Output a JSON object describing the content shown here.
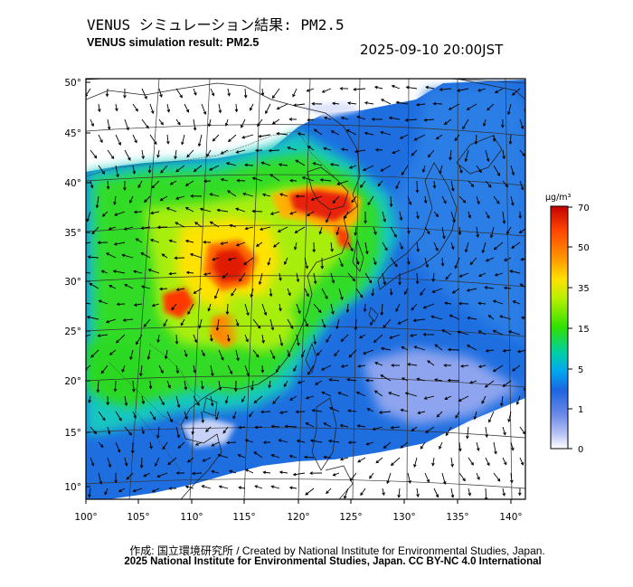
{
  "header": {
    "title_jp": "VENUS シミュレーション結果: PM2.5",
    "title_en": "VENUS simulation result: PM2.5",
    "datetime": "2025-09-10 20:00JST"
  },
  "map": {
    "lat_labels": [
      "50°",
      "45°",
      "40°",
      "35°",
      "30°",
      "25°",
      "20°",
      "15°",
      "10°"
    ],
    "lon_labels": [
      "100°",
      "105°",
      "110°",
      "115°",
      "120°",
      "125°",
      "130°",
      "135°",
      "140°"
    ]
  },
  "colorbar": {
    "unit": "μg/m³",
    "tick_labels": [
      "70",
      "50",
      "35",
      "15",
      "5",
      "1",
      "0"
    ],
    "colors": [
      "#c40000",
      "#ff4500",
      "#ff9a00",
      "#ffe000",
      "#b8f000",
      "#30e000",
      "#00d0a0",
      "#00a8f0",
      "#1e64e0",
      "#6a8ae8",
      "#b8c4f4",
      "#ffffff"
    ]
  },
  "footer": {
    "credit": "作成: 国立環境研究所 / Created by National Institute for Environmental Studies, Japan.",
    "copyright": "2025 National Institute for Environmental Studies, Japan. CC BY-NC 4.0 International"
  }
}
